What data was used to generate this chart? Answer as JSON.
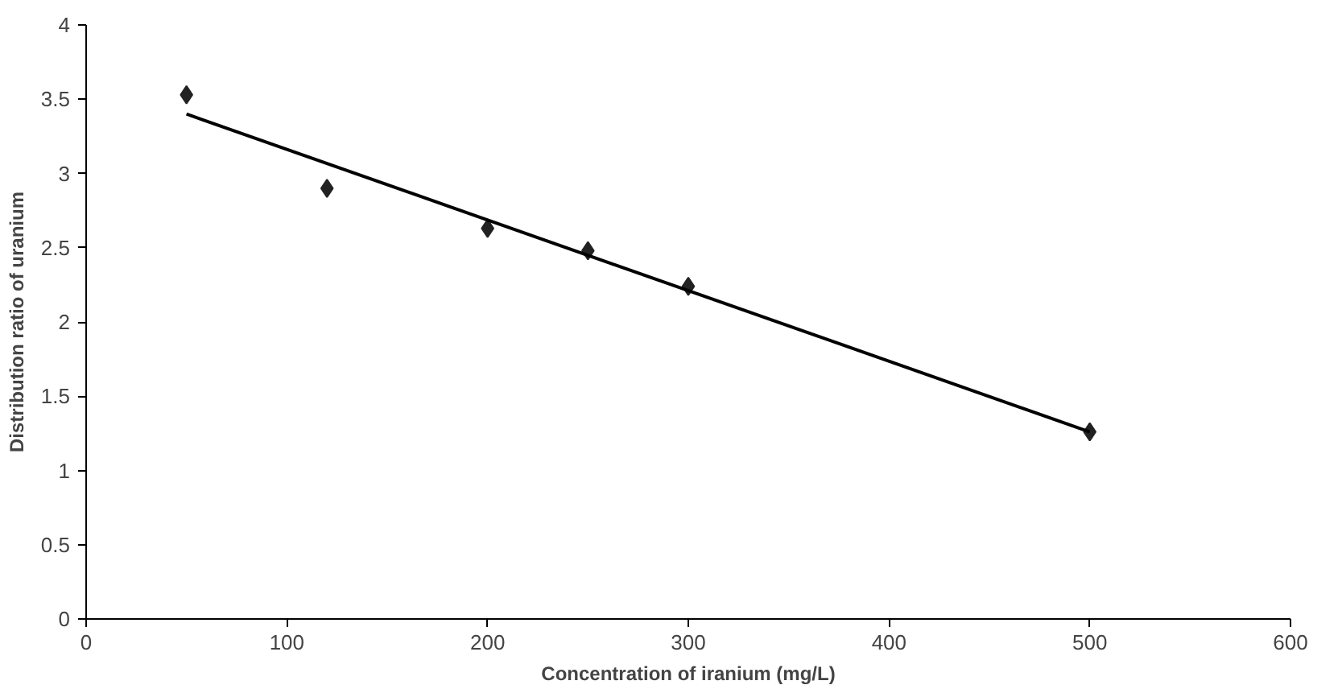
{
  "chart_data": {
    "type": "scatter",
    "xlabel": "Concentration of iranium (mg/L)",
    "ylabel": "Distribution ratio of uranium",
    "xlim": [
      0,
      600
    ],
    "xticks": [
      0,
      100,
      200,
      300,
      400,
      500,
      600
    ],
    "ylim": [
      0,
      4
    ],
    "yticks": [
      0,
      0.5,
      1,
      1.5,
      2,
      2.5,
      3,
      3.5,
      4
    ],
    "grid": false,
    "marker": "diamond",
    "series": [
      {
        "color": "#222222",
        "x": [
          50,
          120,
          200,
          250,
          300,
          500
        ],
        "values": [
          3.53,
          2.9,
          2.63,
          2.48,
          2.24,
          1.26
        ]
      },
      {
        "type": "line",
        "color": "#000000",
        "line_style": "solid",
        "marker": "none",
        "x": [
          50,
          500
        ],
        "values": [
          3.4,
          1.26
        ]
      }
    ]
  }
}
